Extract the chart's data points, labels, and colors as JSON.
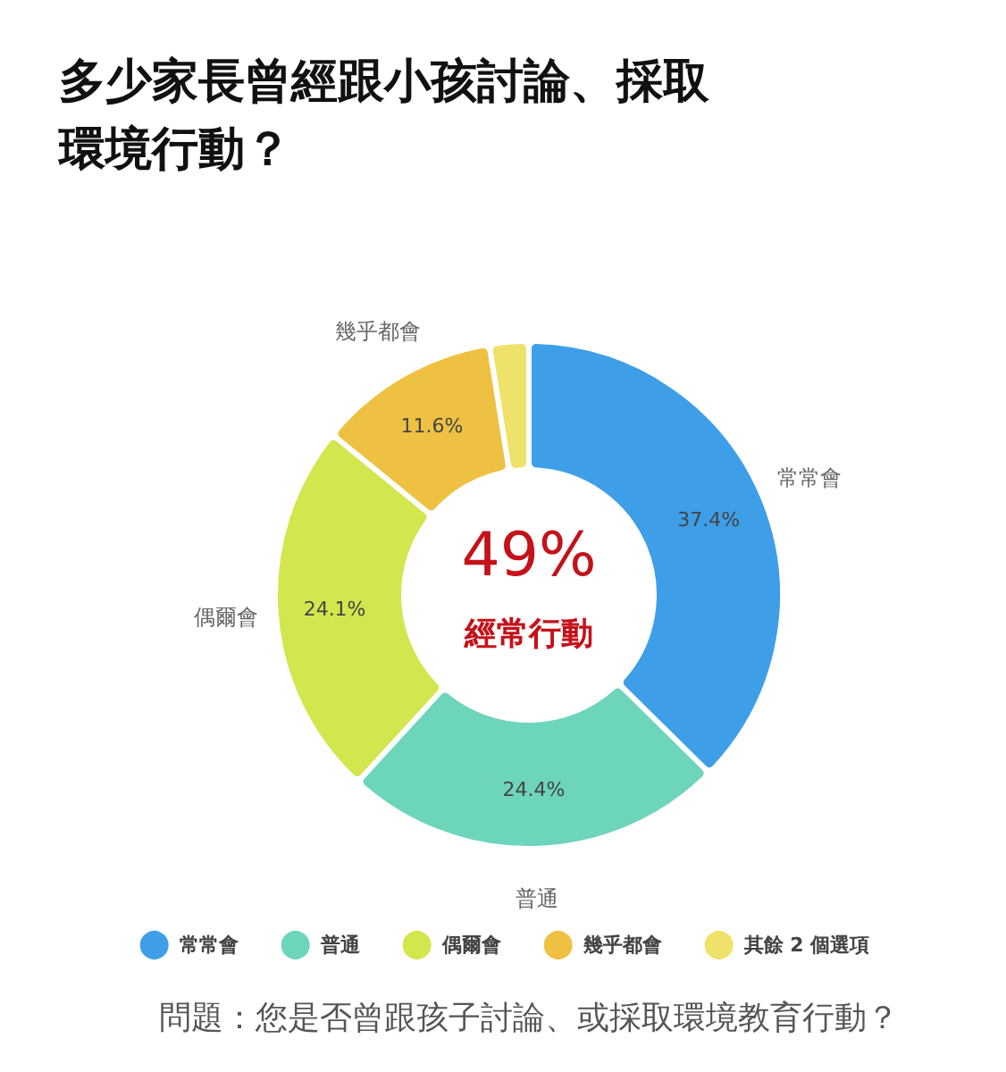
{
  "chart_data": {
    "type": "donut",
    "title": "多少家長曾經跟小孩討論、採取環境行動？",
    "categories": [
      "常常會",
      "普通",
      "偶爾會",
      "幾乎都會",
      "其餘 2 個選項"
    ],
    "values": [
      37.4,
      24.4,
      24.1,
      11.6,
      2.5
    ],
    "colors": [
      "#3e9fe8",
      "#6dd5bc",
      "#d3e64e",
      "#efc143",
      "#efe26a"
    ],
    "value_labels": [
      "37.4%",
      "24.4%",
      "24.1%",
      "11.6%",
      null
    ],
    "legend": "bottom",
    "annotations": [
      "49%",
      "經常行動",
      "問題：您是否曾跟孩子討論、或採取環境教育行動？"
    ]
  }
}
